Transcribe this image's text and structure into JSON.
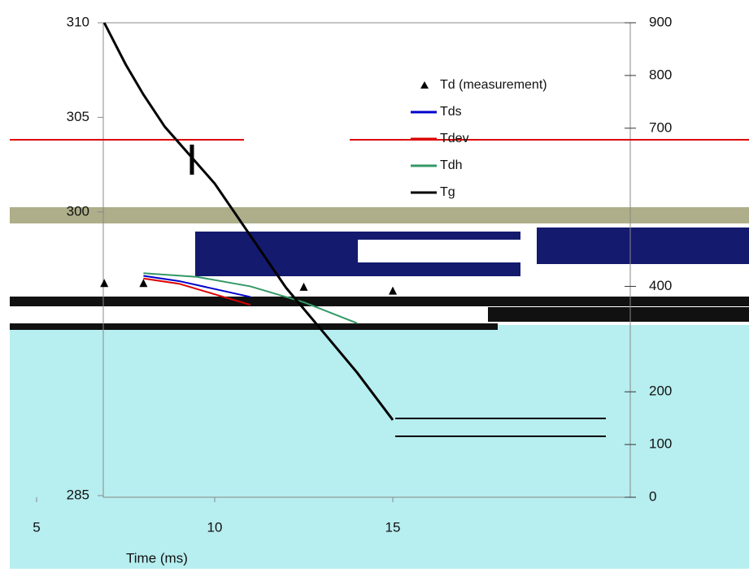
{
  "chart_data": {
    "type": "line",
    "x_label": "Time (ms)",
    "xlim": [
      5,
      15
    ],
    "xticks": [
      5,
      10,
      15
    ],
    "ylim": [
      285,
      310
    ],
    "yticks": [
      285,
      300,
      305,
      310
    ],
    "y2lim": [
      0,
      900
    ],
    "y2ticks": [
      0,
      100,
      200,
      400,
      700,
      800,
      900
    ],
    "series": [
      {
        "name": "Td (measurement)",
        "color": "#000000",
        "marker": "triangle",
        "x": [
          6.9,
          8,
          12.5,
          15
        ],
        "values": [
          296.2,
          296.2,
          296.0,
          295.8
        ]
      },
      {
        "name": "Tds",
        "color": "#0000cc",
        "x": [
          8,
          9,
          10,
          11
        ],
        "values": [
          420,
          410,
          395,
          380
        ],
        "axis": "y2"
      },
      {
        "name": "Tdev",
        "color": "#dd0000",
        "x": [
          8,
          9,
          10,
          11
        ],
        "values": [
          415,
          405,
          385,
          365
        ],
        "axis": "y2"
      },
      {
        "name": "Tdh",
        "color": "#339966",
        "x": [
          8,
          9.5,
          11,
          12.5,
          14
        ],
        "values": [
          425,
          418,
          400,
          370,
          330
        ],
        "axis": "y2"
      },
      {
        "name": "Tg",
        "color": "#000000",
        "x": [
          6.9,
          7.5,
          8,
          8.6,
          10,
          12,
          14,
          15
        ],
        "values": [
          310,
          307.8,
          306.2,
          304.5,
          301.5,
          296,
          291.5,
          289
        ]
      }
    ]
  }
}
